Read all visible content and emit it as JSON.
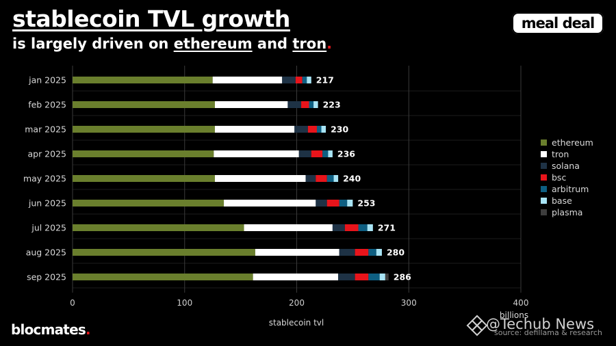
{
  "header": {
    "title": "stablecoin TVL growth",
    "subtitle_pre": "is largely driven on ",
    "subtitle_a": "ethereum",
    "subtitle_mid": " and ",
    "subtitle_b": "tron",
    "subtitle_dot": "."
  },
  "logo": {
    "text": "meal deal"
  },
  "footer": {
    "brand": "blocmates",
    "brand_dot": ".",
    "source": "source: defillama & research",
    "watermark": "@Techub News"
  },
  "colors": {
    "ethereum": "#6a7f2d",
    "tron": "#ffffff",
    "solana": "#1e3245",
    "bsc": "#e8141b",
    "arbitrum": "#0e5f82",
    "base": "#a8e4f5",
    "plasma": "#3d3d3d",
    "grid": "#3a3a3a",
    "background": "#000000"
  },
  "chart_data": {
    "type": "bar",
    "orientation": "horizontal",
    "stacked": true,
    "categories": [
      "jan 2025",
      "feb 2025",
      "mar 2025",
      "apr 2025",
      "may 2025",
      "jun 2025",
      "jul 2025",
      "aug 2025",
      "sep 2025"
    ],
    "series": [
      {
        "name": "ethereum",
        "values": [
          125,
          127,
          127,
          126,
          127,
          135,
          153,
          163,
          161
        ]
      },
      {
        "name": "tron",
        "values": [
          62,
          65,
          71,
          76,
          81,
          82,
          79,
          75,
          76
        ]
      },
      {
        "name": "solana",
        "values": [
          12,
          12,
          12,
          11,
          9,
          10,
          11,
          14,
          15
        ]
      },
      {
        "name": "bsc",
        "values": [
          6,
          7,
          8,
          10,
          10,
          11,
          12,
          12,
          12
        ]
      },
      {
        "name": "arbitrum",
        "values": [
          4,
          4,
          4,
          5,
          6,
          7,
          8,
          7,
          10
        ]
      },
      {
        "name": "base",
        "values": [
          4,
          4,
          4,
          4,
          4,
          5,
          5,
          5,
          5
        ]
      },
      {
        "name": "plasma",
        "values": [
          0,
          0,
          0,
          0,
          0,
          0,
          0,
          0,
          3
        ]
      }
    ],
    "totals": [
      "217",
      "223",
      "230",
      "236",
      "240",
      "253",
      "271",
      "280",
      "286"
    ],
    "xlabel": "stablecoin tvl",
    "unit_label": "billions",
    "xlim": [
      0,
      400
    ],
    "xticks": [
      "0",
      "100",
      "200",
      "300",
      "400"
    ],
    "grid": true,
    "legend": "right"
  }
}
